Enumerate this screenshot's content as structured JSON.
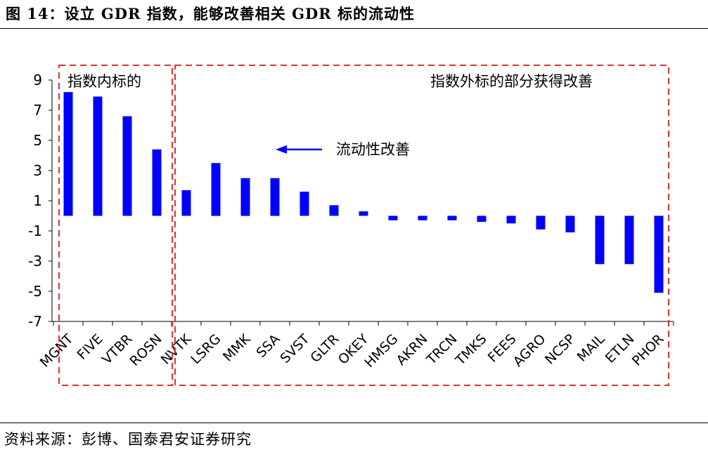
{
  "header": {
    "title": "图 14：设立 GDR 指数，能够改善相关 GDR 标的流动性"
  },
  "footer": {
    "source": "资料来源：彭博、国泰君安证券研究"
  },
  "chart_data": {
    "type": "bar",
    "title": "",
    "xlabel": "",
    "ylabel": "",
    "ylim": [
      -7,
      9
    ],
    "yticks": [
      "9",
      "7",
      "5",
      "3",
      "1",
      "-1",
      "-3",
      "-5",
      "-7"
    ],
    "grid": false,
    "categories": [
      "MGNT",
      "FIVE",
      "VTBR",
      "ROSN",
      "NVTK",
      "LSRG",
      "MMK",
      "SSA",
      "SVST",
      "GLTR",
      "OKEY",
      "HMSG",
      "AKRN",
      "TRCN",
      "TMKS",
      "FEES",
      "AGRO",
      "NCSP",
      "MAIL",
      "ETLN",
      "PHOR"
    ],
    "values": [
      8.2,
      7.9,
      6.6,
      4.4,
      1.7,
      3.5,
      2.5,
      2.5,
      1.6,
      0.7,
      0.3,
      -0.3,
      -0.3,
      -0.3,
      -0.4,
      -0.5,
      -0.9,
      -1.1,
      -3.2,
      -3.2,
      -5.1
    ],
    "bar_color": "#0000ff",
    "groups": [
      {
        "label": "指数内标的",
        "members": [
          "MGNT",
          "FIVE",
          "VTBR",
          "ROSN"
        ]
      },
      {
        "label": "指数外标的部分获得改善",
        "members": [
          "NVTK",
          "LSRG",
          "MMK",
          "SSA",
          "SVST",
          "GLTR",
          "OKEY",
          "HMSG",
          "AKRN",
          "TRCN",
          "TMKS",
          "FEES",
          "AGRO",
          "NCSP",
          "MAIL",
          "ETLN",
          "PHOR"
        ]
      }
    ],
    "annotations": [
      {
        "text": "流动性改善",
        "arrow": "left",
        "color": "#0000ff"
      }
    ],
    "box_color": "#e03030"
  }
}
